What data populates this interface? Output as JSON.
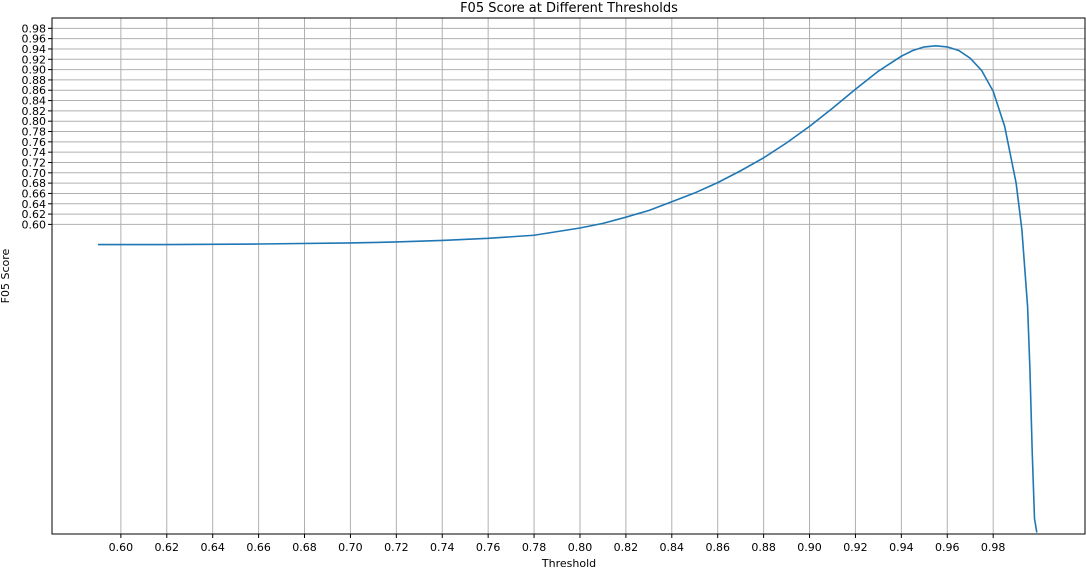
{
  "chart_data": {
    "type": "line",
    "title": "F05 Score at Different Thresholds",
    "xlabel": "Threshold",
    "ylabel": "F05 Score",
    "xlim": [
      0.57,
      1.02
    ],
    "ylim": [
      0.0,
      1.0
    ],
    "grid": true,
    "xticks": [
      "0.60",
      "0.62",
      "0.64",
      "0.66",
      "0.68",
      "0.70",
      "0.72",
      "0.74",
      "0.76",
      "0.78",
      "0.80",
      "0.82",
      "0.84",
      "0.86",
      "0.88",
      "0.90",
      "0.92",
      "0.94",
      "0.96",
      "0.98"
    ],
    "yticks": [
      "0.60",
      "0.62",
      "0.64",
      "0.66",
      "0.68",
      "0.70",
      "0.72",
      "0.74",
      "0.76",
      "0.78",
      "0.80",
      "0.82",
      "0.84",
      "0.86",
      "0.88",
      "0.90",
      "0.92",
      "0.94",
      "0.96",
      "0.98"
    ],
    "series": [
      {
        "color": "#1f77b4",
        "x": [
          0.59,
          0.62,
          0.66,
          0.7,
          0.72,
          0.74,
          0.76,
          0.78,
          0.8,
          0.81,
          0.82,
          0.83,
          0.84,
          0.85,
          0.86,
          0.87,
          0.88,
          0.89,
          0.9,
          0.91,
          0.92,
          0.93,
          0.94,
          0.945,
          0.95,
          0.955,
          0.96,
          0.965,
          0.97,
          0.975,
          0.98,
          0.985,
          0.99,
          0.9925,
          0.995,
          0.996,
          0.997,
          0.998,
          0.999
        ],
        "y": [
          0.561,
          0.561,
          0.562,
          0.564,
          0.566,
          0.569,
          0.573,
          0.579,
          0.593,
          0.602,
          0.614,
          0.627,
          0.644,
          0.661,
          0.681,
          0.704,
          0.729,
          0.758,
          0.79,
          0.825,
          0.862,
          0.897,
          0.926,
          0.937,
          0.944,
          0.946,
          0.944,
          0.937,
          0.922,
          0.898,
          0.858,
          0.79,
          0.68,
          0.59,
          0.44,
          0.32,
          0.16,
          0.03,
          0.003
        ]
      }
    ]
  }
}
